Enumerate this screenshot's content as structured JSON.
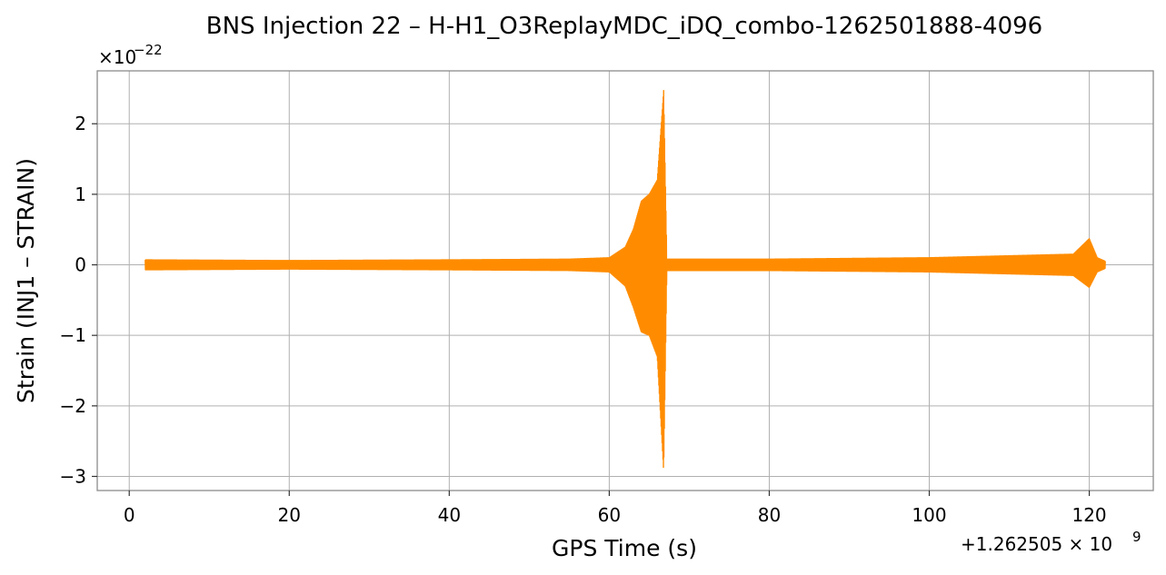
{
  "chart_data": {
    "type": "line",
    "title": "BNS Injection 22 – H-H1_O3ReplayMDC_iDQ_combo-1262501888-4096",
    "xlabel": "GPS Time (s)",
    "ylabel": "Strain (INJ1 – STRAIN)",
    "x_offset_text": "+1.262505 × 10",
    "x_offset_exp": "9",
    "y_scale_text": "×10",
    "y_scale_exp": "−22",
    "xlim": [
      -4,
      128
    ],
    "ylim": [
      -3.2,
      2.75
    ],
    "x_ticks": [
      0,
      20,
      40,
      60,
      80,
      100,
      120
    ],
    "x_tick_labels": [
      "0",
      "20",
      "40",
      "60",
      "80",
      "100",
      "120"
    ],
    "y_ticks": [
      -3,
      -2,
      -1,
      0,
      1,
      2
    ],
    "y_tick_labels": [
      "−3",
      "−2",
      "−1",
      "0",
      "1",
      "2"
    ],
    "grid": true,
    "series": [
      {
        "color": "#ff8c00",
        "x_range": [
          2,
          122
        ],
        "envelope": {
          "description_points": [
            {
              "x": 2,
              "upper": 0.07,
              "lower": -0.07
            },
            {
              "x": 20,
              "upper": 0.06,
              "lower": -0.06
            },
            {
              "x": 40,
              "upper": 0.07,
              "lower": -0.07
            },
            {
              "x": 55,
              "upper": 0.08,
              "lower": -0.08
            },
            {
              "x": 60,
              "upper": 0.1,
              "lower": -0.1
            },
            {
              "x": 62,
              "upper": 0.25,
              "lower": -0.3
            },
            {
              "x": 63,
              "upper": 0.5,
              "lower": -0.6
            },
            {
              "x": 64,
              "upper": 0.9,
              "lower": -0.95
            },
            {
              "x": 65,
              "upper": 1.0,
              "lower": -1.0
            },
            {
              "x": 66,
              "upper": 1.2,
              "lower": -1.3
            },
            {
              "x": 66.8,
              "upper": 2.47,
              "lower": -2.93
            },
            {
              "x": 67.2,
              "upper": 0.08,
              "lower": -0.08
            },
            {
              "x": 80,
              "upper": 0.08,
              "lower": -0.08
            },
            {
              "x": 100,
              "upper": 0.1,
              "lower": -0.1
            },
            {
              "x": 118,
              "upper": 0.15,
              "lower": -0.15
            },
            {
              "x": 120,
              "upper": 0.37,
              "lower": -0.32
            },
            {
              "x": 121,
              "upper": 0.1,
              "lower": -0.1
            },
            {
              "x": 122,
              "upper": 0.05,
              "lower": -0.05
            }
          ]
        }
      }
    ]
  }
}
